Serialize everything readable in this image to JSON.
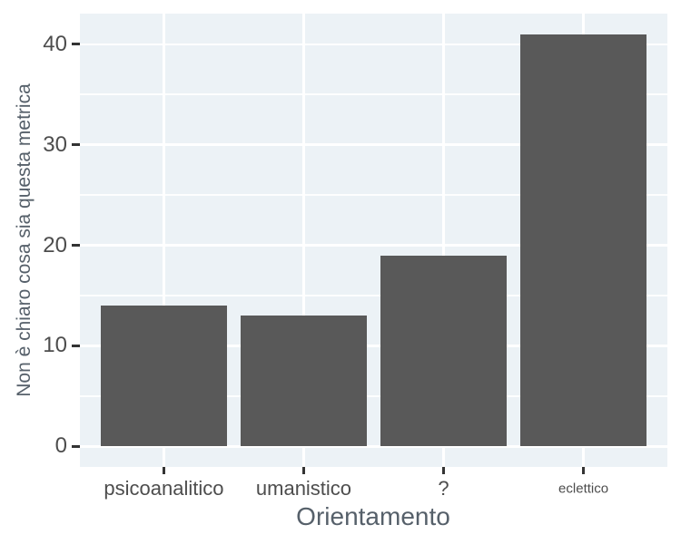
{
  "chart_data": {
    "type": "bar",
    "title": "",
    "xlabel": "Orientamento",
    "ylabel": "Non è chiaro cosa sia questa metrica",
    "categories": [
      "psicoanalitico",
      "umanistico",
      "?",
      "eclettico"
    ],
    "values": [
      14,
      13,
      19,
      41
    ],
    "ylim": [
      0,
      41
    ],
    "yticks": [
      0,
      10,
      20,
      30,
      40
    ],
    "yminor_ticks": [
      5,
      15,
      25,
      35
    ],
    "grid": "horizontal major+minor, vertical major at category centers (behind bars)",
    "legend_position": "none",
    "colors": {
      "bar": "#595959",
      "panel_bg": "#ecf2f6",
      "grid_major": "#ffffff",
      "grid_minor": "#ffffff",
      "tick": "#333333",
      "tick_label": "#4d4d4d",
      "axis_title": "#56606a",
      "page_bg": "#ffffff"
    }
  }
}
